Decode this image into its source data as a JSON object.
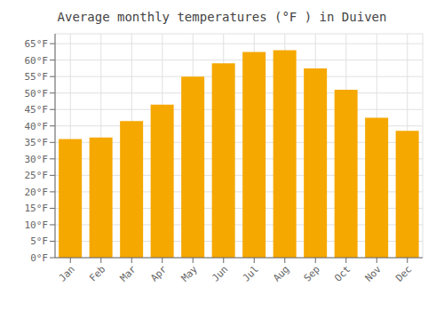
{
  "chart_data": {
    "type": "bar",
    "title": "Average monthly temperatures (°F ) in Duiven",
    "categories": [
      "Jan",
      "Feb",
      "Mar",
      "Apr",
      "May",
      "Jun",
      "Jul",
      "Aug",
      "Sep",
      "Oct",
      "Nov",
      "Dec"
    ],
    "values": [
      36,
      36.5,
      41.5,
      46.5,
      55,
      59,
      62.5,
      63,
      57.5,
      51,
      42.5,
      38.5
    ],
    "color": "#F5A800",
    "ylim": [
      0,
      68
    ],
    "yticks": [
      {
        "value": 0,
        "label": "0°F"
      },
      {
        "value": 5,
        "label": "5°F"
      },
      {
        "value": 10,
        "label": "10°F"
      },
      {
        "value": 15,
        "label": "15°F"
      },
      {
        "value": 20,
        "label": "20°F"
      },
      {
        "value": 25,
        "label": "25°F"
      },
      {
        "value": 30,
        "label": "30°F"
      },
      {
        "value": 35,
        "label": "35°F"
      },
      {
        "value": 40,
        "label": "40°F"
      },
      {
        "value": 45,
        "label": "45°F"
      },
      {
        "value": 50,
        "label": "50°F"
      },
      {
        "value": 55,
        "label": "55°F"
      },
      {
        "value": 60,
        "label": "60°F"
      },
      {
        "value": 65,
        "label": "65°F"
      }
    ],
    "grid": true
  }
}
